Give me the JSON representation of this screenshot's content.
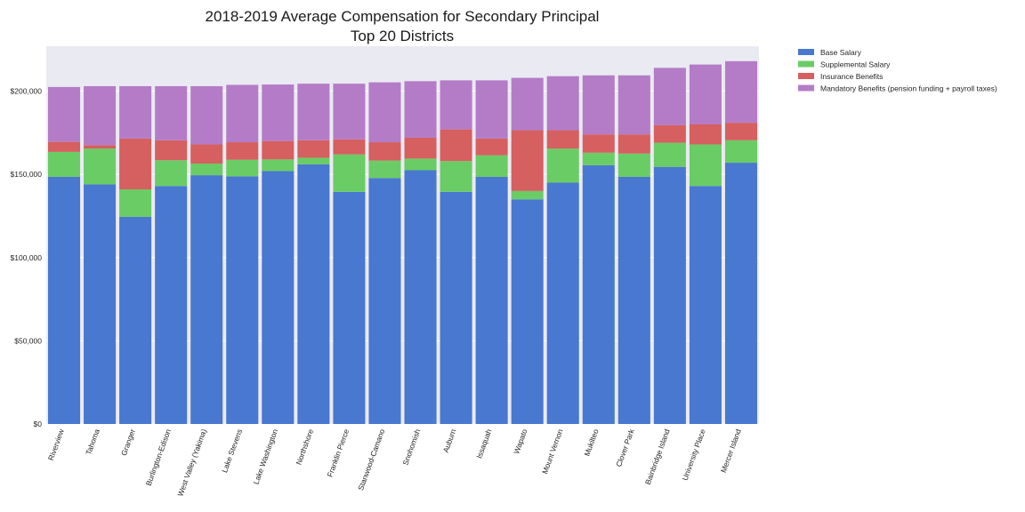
{
  "chart_data": {
    "type": "bar",
    "stacked": true,
    "title": "2018-2019 Average Compensation for Secondary Principal",
    "subtitle": "Top 20 Districts",
    "xlabel": "",
    "ylabel": "",
    "ylim": [
      0,
      227000
    ],
    "y_ticks": [
      0,
      50000,
      100000,
      150000,
      200000
    ],
    "y_tick_labels": [
      "$0",
      "$50,000",
      "$100,000",
      "$150,000",
      "$200,000"
    ],
    "grid": true,
    "legend_position": "outside-top-right",
    "categories": [
      "Riverview",
      "Tahoma",
      "Granger",
      "Burlington-Edison",
      "West Valley (Yakima)",
      "Lake Stevens",
      "Lake Washington",
      "Northshore",
      "Franklin Pierce",
      "Stanwood-Camano",
      "Snohomish",
      "Auburn",
      "Issaquah",
      "Wapato",
      "Mount Vernon",
      "Mukilteo",
      "Clover Park",
      "Bainbridge Island",
      "University Place",
      "Mercer Island"
    ],
    "series": [
      {
        "name": "Base Salary",
        "color": "#4878cf",
        "values": [
          148500,
          144000,
          124500,
          143000,
          149500,
          148800,
          152000,
          156000,
          139500,
          147800,
          152500,
          139500,
          148500,
          135000,
          145000,
          155500,
          148500,
          154500,
          143000,
          157000
        ]
      },
      {
        "name": "Supplemental Salary",
        "color": "#6acc65",
        "values": [
          15000,
          21500,
          16500,
          15500,
          7000,
          10000,
          7000,
          4000,
          22500,
          10500,
          7000,
          18500,
          13000,
          5000,
          20500,
          7500,
          14000,
          14500,
          25000,
          13500
        ]
      },
      {
        "name": "Insurance Benefits",
        "color": "#d65f5f",
        "values": [
          6000,
          2000,
          30500,
          12000,
          11500,
          10500,
          11000,
          10500,
          9000,
          11000,
          12500,
          19000,
          10000,
          36500,
          11000,
          11000,
          11500,
          10500,
          12000,
          10500
        ]
      },
      {
        "name": "Mandatory Benefits (pension funding + payroll taxes)",
        "color": "#b47cc7",
        "values": [
          33000,
          35500,
          31500,
          32500,
          35000,
          34500,
          34000,
          34000,
          33500,
          36000,
          34000,
          29500,
          35000,
          31500,
          32500,
          35500,
          35500,
          34500,
          36000,
          37000
        ]
      }
    ]
  }
}
